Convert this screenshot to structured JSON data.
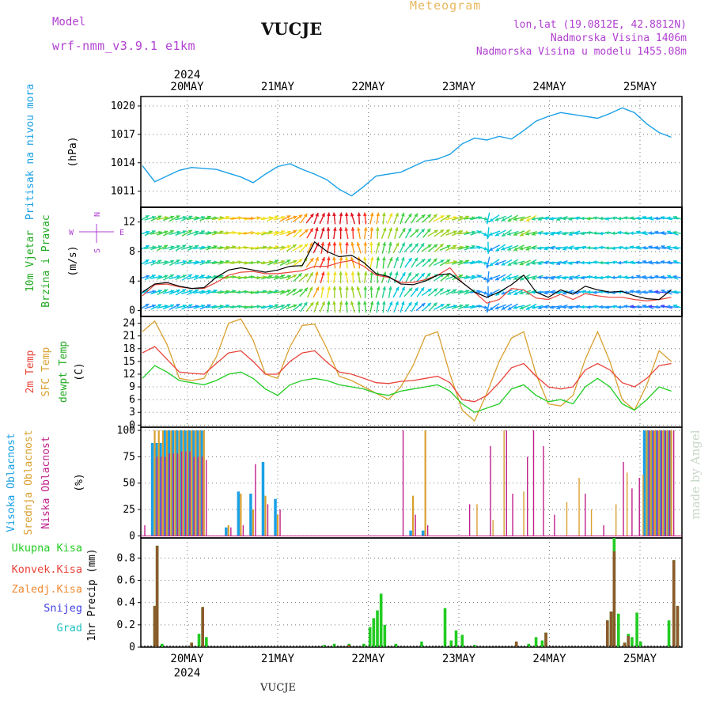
{
  "header": {
    "model_label": "Model",
    "model_name": "wrf-nmm_v3.9.1 e1km",
    "station": "VUCJE",
    "meteogram": "Meteogram",
    "lonlat": "lon,lat (19.0812E, 42.8812N)",
    "elevation": "Nadmorska Visina 1406m",
    "model_elevation": "Nadmorska Visina u modelu 1455.08m",
    "footer_station": "VUCJE",
    "watermark": "made by Angel"
  },
  "colors": {
    "pressure": "#1aa0e6",
    "wind_speed": "#000000",
    "wind_gust": "#e8443a",
    "temp2m": "#e8443a",
    "sfc_temp": "#d9a030",
    "dewpt": "#22cc22",
    "cloud_high": "#1aa0e6",
    "cloud_mid": "#d9a030",
    "cloud_low": "#c01f8a",
    "precip_total": "#22cc22",
    "precip_conv": "#e8443a",
    "snow": "#4040e0",
    "hail": "#20c0c0",
    "grid": "#777777",
    "purple_label": "#b040d0",
    "gold_label": "#e8b860"
  },
  "chart_data": [
    {
      "type": "line",
      "panel": "pressure",
      "ylabel": [
        "Pritisak na nivou mora",
        "(hPa)"
      ],
      "x_start": "2024-05-19 15:00",
      "x_step_hours": 3,
      "x_top_labels": [
        "20MAY",
        "21MAY",
        "22MAY",
        "23MAY",
        "24MAY",
        "25MAY"
      ],
      "x_top_year": "2024",
      "yticks": [
        1011,
        1014,
        1017,
        1020
      ],
      "ylim": [
        1009.3,
        1021.0
      ],
      "grid": true,
      "series": [
        {
          "values": [
            1013.7,
            1012.0,
            1012.6,
            1013.2,
            1013.5,
            1013.4,
            1013.3,
            1012.9,
            1012.5,
            1011.9,
            1012.8,
            1013.6,
            1013.9,
            1013.3,
            1012.8,
            1012.2,
            1011.2,
            1010.5,
            1011.5,
            1012.6,
            1012.8,
            1013.0,
            1013.6,
            1014.2,
            1014.4,
            1014.9,
            1016.0,
            1016.6,
            1016.4,
            1016.8,
            1016.5,
            1017.4,
            1018.4,
            1018.9,
            1019.3,
            1019.1,
            1018.9,
            1018.7,
            1019.2,
            1019.8,
            1019.3,
            1018.1,
            1017.2,
            1016.7
          ]
        }
      ]
    },
    {
      "type": "line",
      "panel": "wind",
      "ylabel": [
        "10m Vjetar",
        "Brzina i Pravac",
        "(m/s)"
      ],
      "compass": {
        "n": "N",
        "e": "E",
        "w": "W",
        "s": "S"
      },
      "yticks": [
        0,
        4,
        8,
        12
      ],
      "ylim": [
        -0.8,
        14.0
      ],
      "grid": true,
      "series": [
        {
          "values": [
            2.5,
            3.6,
            3.8,
            3.3,
            3.0,
            3.1,
            4.5,
            5.5,
            5.8,
            5.5,
            5.2,
            5.5,
            6.0,
            6.1,
            9.3,
            8.0,
            7.3,
            7.5,
            6.5,
            5.0,
            4.6,
            3.6,
            3.5,
            4.0,
            4.8,
            5.0,
            3.8,
            2.5,
            1.8,
            2.5,
            3.5,
            4.8,
            2.5,
            1.8,
            2.8,
            2.2,
            3.3,
            2.8,
            2.5,
            2.6,
            2.0,
            1.6,
            1.5,
            2.8
          ]
        },
        {
          "values": [
            2.0,
            3.5,
            3.6,
            3.2,
            3.0,
            3.0,
            3.8,
            4.8,
            5.2,
            5.3,
            5.0,
            5.0,
            5.2,
            5.4,
            6.0,
            6.0,
            6.5,
            6.8,
            6.0,
            4.8,
            4.5,
            3.8,
            3.8,
            4.2,
            4.8,
            5.8,
            3.8,
            2.5,
            1.0,
            1.5,
            3.0,
            2.8,
            1.7,
            1.5,
            2.2,
            1.5,
            2.3,
            2.0,
            1.8,
            1.8,
            1.5,
            1.3,
            1.5,
            1.8
          ]
        }
      ]
    },
    {
      "type": "line",
      "panel": "temperature",
      "ylabel": [
        "2m Temp",
        "SFC Temp",
        "dewpt Temp",
        "(C)"
      ],
      "yticks": [
        0,
        3,
        6,
        9,
        12,
        15,
        18,
        21,
        24
      ],
      "ylim": [
        -0.5,
        25.6
      ],
      "grid": true,
      "series": [
        {
          "name": "2m Temp",
          "values": [
            17.0,
            18.5,
            15.5,
            12.5,
            12.2,
            12.0,
            14.5,
            17.0,
            17.5,
            15.0,
            12.0,
            12.0,
            15.0,
            17.0,
            17.5,
            14.8,
            12.5,
            12.0,
            11.0,
            10.0,
            9.8,
            10.3,
            10.5,
            11.0,
            11.5,
            10.0,
            6.0,
            5.5,
            7.0,
            10.0,
            13.5,
            14.5,
            11.5,
            9.0,
            8.5,
            9.0,
            13.0,
            14.5,
            13.0,
            10.0,
            9.0,
            11.0,
            14.0,
            14.5
          ]
        },
        {
          "name": "SFC Temp",
          "values": [
            22.0,
            24.5,
            19.0,
            11.0,
            10.5,
            11.0,
            16.0,
            24.0,
            25.0,
            20.0,
            12.0,
            11.0,
            18.5,
            23.5,
            23.8,
            18.0,
            11.5,
            10.5,
            9.0,
            7.5,
            6.0,
            9.0,
            14.0,
            21.0,
            22.0,
            12.0,
            3.5,
            1.0,
            7.5,
            15.0,
            20.5,
            22.0,
            12.0,
            5.0,
            4.5,
            7.0,
            15.5,
            22.0,
            15.0,
            6.0,
            3.5,
            9.5,
            17.5,
            15.0
          ]
        },
        {
          "name": "dewpt Temp",
          "values": [
            11.0,
            14.0,
            12.5,
            10.5,
            10.0,
            9.5,
            10.5,
            12.0,
            12.5,
            11.0,
            8.5,
            7.0,
            9.5,
            10.5,
            11.0,
            10.5,
            9.5,
            9.0,
            8.5,
            7.5,
            7.0,
            8.0,
            8.5,
            9.0,
            9.5,
            8.0,
            5.0,
            3.0,
            4.0,
            5.0,
            8.5,
            9.5,
            7.0,
            5.5,
            6.0,
            5.0,
            9.0,
            11.0,
            9.0,
            5.0,
            3.5,
            6.0,
            9.0,
            8.0
          ]
        }
      ]
    },
    {
      "type": "bar",
      "panel": "clouds",
      "ylabel": [
        "Visoka Oblacnost",
        "Srednja Oblacnost",
        "Niska Oblacnost",
        "(%)"
      ],
      "yticks": [
        0,
        25,
        50,
        75,
        100
      ],
      "ylim": [
        -2,
        103
      ],
      "grid": true,
      "series": [
        {
          "name": "Visoka Oblacnost",
          "values": [
            0,
            88,
            100,
            100,
            100,
            100,
            0,
            8,
            42,
            40,
            70,
            35,
            0,
            0,
            0,
            0,
            0,
            0,
            0,
            0,
            0,
            0,
            5,
            5,
            0,
            0,
            0,
            0,
            0,
            0,
            0,
            0,
            0,
            0,
            0,
            0,
            0,
            0,
            0,
            0,
            0,
            100,
            100,
            100
          ]
        },
        {
          "name": "Srednja Oblacnost",
          "values": [
            0,
            100,
            100,
            100,
            100,
            100,
            0,
            10,
            40,
            25,
            38,
            20,
            0,
            0,
            0,
            0,
            0,
            0,
            0,
            0,
            0,
            0,
            38,
            100,
            0,
            0,
            0,
            0,
            0,
            0,
            0,
            0,
            0,
            0,
            0,
            0,
            0,
            0,
            0,
            0,
            0,
            100,
            100,
            100
          ]
        },
        {
          "name": "Niska Oblacnost",
          "values": [
            10,
            75,
            78,
            80,
            75,
            72,
            0,
            8,
            10,
            68,
            30,
            25,
            0,
            0,
            0,
            0,
            0,
            0,
            0,
            0,
            0,
            100,
            20,
            10,
            0,
            0,
            0,
            0,
            0,
            0,
            0,
            0,
            0,
            0,
            0,
            0,
            0,
            0,
            0,
            0,
            0,
            100,
            100,
            100
          ]
        }
      ],
      "extra_bars": [
        {
          "x": 26.6,
          "series": "Niska Oblacnost",
          "v": 30
        },
        {
          "x": 27.2,
          "series": "Srednja Oblacnost",
          "v": 30
        },
        {
          "x": 28.3,
          "series": "Niska Oblacnost",
          "v": 85
        },
        {
          "x": 28.5,
          "series": "Srednja Oblacnost",
          "v": 15
        },
        {
          "x": 29.4,
          "series": "Srednja Oblacnost",
          "v": 100
        },
        {
          "x": 29.6,
          "series": "Niska Oblacnost",
          "v": 100
        },
        {
          "x": 30.1,
          "series": "Niska Oblacnost",
          "v": 40
        },
        {
          "x": 31.0,
          "series": "Srednja Oblacnost",
          "v": 42
        },
        {
          "x": 31.3,
          "series": "Niska Oblacnost",
          "v": 75
        },
        {
          "x": 31.8,
          "series": "Niska Oblacnost",
          "v": 100
        },
        {
          "x": 32.6,
          "series": "Niska Oblacnost",
          "v": 85
        },
        {
          "x": 33.5,
          "series": "Niska Oblacnost",
          "v": 20
        },
        {
          "x": 34.5,
          "series": "Srednja Oblacnost",
          "v": 32
        },
        {
          "x": 35.5,
          "series": "Srednja Oblacnost",
          "v": 55
        },
        {
          "x": 36.0,
          "series": "Niska Oblacnost",
          "v": 40
        },
        {
          "x": 36.5,
          "series": "Srednja Oblacnost",
          "v": 25
        },
        {
          "x": 37.5,
          "series": "Niska Oblacnost",
          "v": 10
        },
        {
          "x": 38.5,
          "series": "Srednja Oblacnost",
          "v": 30
        },
        {
          "x": 39.1,
          "series": "Niska Oblacnost",
          "v": 70
        },
        {
          "x": 39.4,
          "series": "Srednja Oblacnost",
          "v": 60
        },
        {
          "x": 39.8,
          "series": "Niska Oblacnost",
          "v": 45
        },
        {
          "x": 40.4,
          "series": "Niska Oblacnost",
          "v": 55
        },
        {
          "x": 40.7,
          "series": "Srednja Oblacnost",
          "v": 58
        }
      ]
    },
    {
      "type": "bar",
      "panel": "precipitation",
      "ylabel": [
        "1hr Precip (mm)"
      ],
      "legend": [
        "Ukupna Kisa",
        "Konvek.Kisa",
        "Zaledj.Kisa",
        "Snijeg",
        "Grad"
      ],
      "yticks": [
        0,
        0.2,
        0.4,
        0.6,
        0.8
      ],
      "ylim": [
        0,
        0.98
      ],
      "grid": true,
      "x_bottom_labels": [
        "20MAY",
        "21MAY",
        "22MAY",
        "23MAY",
        "24MAY",
        "25MAY"
      ],
      "x_bottom_year": "2024",
      "bars": [
        {
          "x": 1.0,
          "total": 0.37,
          "conv": 0.37
        },
        {
          "x": 1.2,
          "total": 0.91,
          "conv": 0.91
        },
        {
          "x": 1.6,
          "total": 0.03,
          "conv": 0.0
        },
        {
          "x": 4.0,
          "total": 0.04,
          "conv": 0.04
        },
        {
          "x": 4.6,
          "total": 0.12,
          "conv": 0.0
        },
        {
          "x": 4.9,
          "total": 0.36,
          "conv": 0.36
        },
        {
          "x": 5.2,
          "total": 0.09,
          "conv": 0.0
        },
        {
          "x": 14.8,
          "total": 0.02,
          "conv": 0.0
        },
        {
          "x": 15.6,
          "total": 0.03,
          "conv": 0.0
        },
        {
          "x": 16.8,
          "total": 0.03,
          "conv": 0.02
        },
        {
          "x": 18.0,
          "total": 0.03,
          "conv": 0.0
        },
        {
          "x": 18.5,
          "total": 0.18,
          "conv": 0.0
        },
        {
          "x": 18.8,
          "total": 0.26,
          "conv": 0.0
        },
        {
          "x": 19.1,
          "total": 0.33,
          "conv": 0.0
        },
        {
          "x": 19.4,
          "total": 0.48,
          "conv": 0.0
        },
        {
          "x": 19.7,
          "total": 0.2,
          "conv": 0.0
        },
        {
          "x": 20.6,
          "total": 0.03,
          "conv": 0.0
        },
        {
          "x": 22.7,
          "total": 0.05,
          "conv": 0.0
        },
        {
          "x": 24.6,
          "total": 0.35,
          "conv": 0.0
        },
        {
          "x": 25.1,
          "total": 0.06,
          "conv": 0.0
        },
        {
          "x": 25.5,
          "total": 0.15,
          "conv": 0.0
        },
        {
          "x": 26.0,
          "total": 0.11,
          "conv": 0.0
        },
        {
          "x": 27.0,
          "total": 0.02,
          "conv": 0.0
        },
        {
          "x": 30.4,
          "total": 0.05,
          "conv": 0.05
        },
        {
          "x": 31.4,
          "total": 0.03,
          "conv": 0.0
        },
        {
          "x": 32.0,
          "total": 0.09,
          "conv": 0.0
        },
        {
          "x": 32.5,
          "total": 0.06,
          "conv": 0.0
        },
        {
          "x": 32.8,
          "total": 0.13,
          "conv": 0.13
        },
        {
          "x": 37.8,
          "total": 0.24,
          "conv": 0.24
        },
        {
          "x": 38.1,
          "total": 0.32,
          "conv": 0.32
        },
        {
          "x": 38.35,
          "total": 0.98,
          "conv": 0.86
        },
        {
          "x": 38.7,
          "total": 0.3,
          "conv": 0.0
        },
        {
          "x": 39.2,
          "total": 0.04,
          "conv": 0.04
        },
        {
          "x": 39.5,
          "total": 0.12,
          "conv": 0.1
        },
        {
          "x": 39.8,
          "total": 0.09,
          "conv": 0.0
        },
        {
          "x": 40.2,
          "total": 0.31,
          "conv": 0.0
        },
        {
          "x": 40.5,
          "total": 0.05,
          "conv": 0.0
        },
        {
          "x": 42.8,
          "total": 0.24,
          "conv": 0.0
        },
        {
          "x": 43.2,
          "total": 0.78,
          "conv": 0.78
        },
        {
          "x": 43.5,
          "total": 0.37,
          "conv": 0.37
        }
      ]
    }
  ],
  "wind_field": {
    "columns": 88,
    "rows": 7,
    "row_levels": [
      0.5,
      2.5,
      4.5,
      6.5,
      8.5,
      10.5,
      12.5
    ],
    "speed_by_step": [
      2.5,
      3.6,
      3.8,
      3.3,
      3.0,
      3.1,
      4.5,
      5.5,
      5.8,
      5.5,
      5.2,
      5.5,
      6.0,
      6.1,
      9.3,
      8.0,
      7.3,
      7.5,
      6.5,
      5.0,
      4.6,
      3.6,
      3.5,
      4.0,
      4.8,
      5.0,
      3.8,
      2.5,
      1.8,
      2.5,
      3.5,
      4.8,
      2.5,
      1.8,
      2.8,
      2.2,
      3.3,
      2.8,
      2.5,
      2.6,
      2.0,
      1.6,
      1.5,
      2.8
    ],
    "direction_from_deg_by_step": [
      250,
      250,
      250,
      250,
      250,
      255,
      260,
      265,
      270,
      270,
      260,
      250,
      240,
      220,
      200,
      180,
      180,
      170,
      180,
      190,
      200,
      210,
      220,
      230,
      240,
      250,
      255,
      260,
      60,
      60,
      70,
      70,
      80,
      80,
      80,
      80,
      90,
      90,
      90,
      90,
      100,
      100,
      100,
      100
    ],
    "colors": [
      "#8a2be2",
      "#4040ff",
      "#1e90ff",
      "#00c8e0",
      "#20d090",
      "#40d040",
      "#9ad020",
      "#f0e020",
      "#ff9a10",
      "#ff3020",
      "#e0101a"
    ]
  }
}
